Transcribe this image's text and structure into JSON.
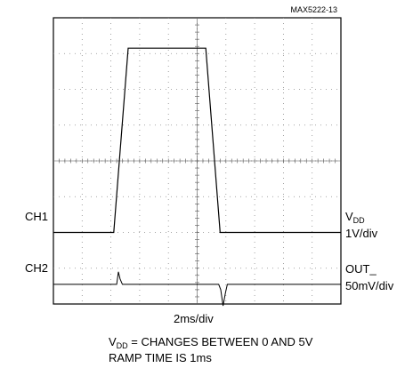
{
  "chart_data": {
    "type": "line",
    "part_id": "MAX5222-13",
    "grid": true,
    "x_divisions": 10,
    "y_divisions": 8,
    "xlabel": "2ms/div",
    "channels": [
      {
        "name": "CH1",
        "signal": "V",
        "signal_sub": "DD",
        "scale": "1V/div"
      },
      {
        "name": "CH2",
        "signal": "OUT_",
        "signal_sub": "",
        "scale": "50mV/div"
      }
    ],
    "ch1_trace": {
      "x_div": [
        0,
        2.1,
        2.6,
        5.3,
        5.8,
        10
      ],
      "y_div": [
        0,
        0,
        5.15,
        5.15,
        0,
        0
      ]
    },
    "ch2_trace": {
      "x_div": [
        0,
        2.2,
        2.26,
        2.32,
        2.4,
        5.75,
        5.82,
        5.9,
        5.98,
        6.05,
        10
      ],
      "y_div": [
        0,
        0,
        0.35,
        0.15,
        0,
        0,
        -0.15,
        -0.6,
        -0.25,
        0,
        0
      ]
    },
    "notes": {
      "line1_prefix": "V",
      "line1_sub": "DD",
      "line1_suffix": " = CHANGES BETWEEN 0 AND 5V",
      "line2": "RAMP TIME IS 1ms"
    }
  }
}
